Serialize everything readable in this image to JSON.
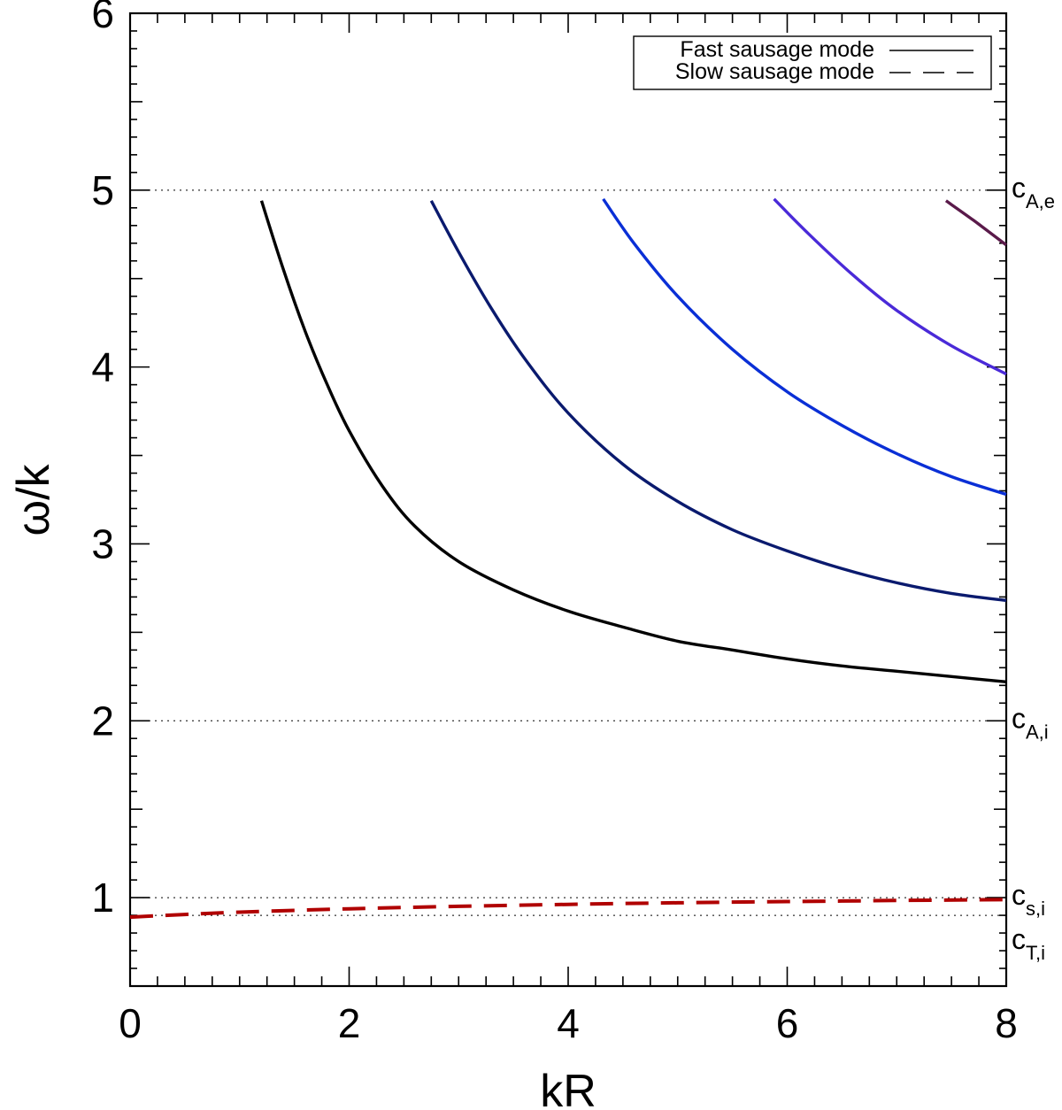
{
  "chart_data": {
    "type": "line",
    "xlabel": "kR",
    "ylabel": "ω/k",
    "xlim": [
      0,
      8
    ],
    "ylim": [
      0.5,
      6
    ],
    "xticks": [
      "0",
      "2",
      "4",
      "6",
      "8"
    ],
    "yticks": [
      "1",
      "2",
      "3",
      "4",
      "5",
      "6"
    ],
    "grid": false,
    "legend": {
      "placement": "top-right",
      "entries": [
        {
          "label": "Fast sausage mode",
          "style": "solid"
        },
        {
          "label": "Slow sausage mode",
          "style": "dashed"
        }
      ]
    },
    "reference_lines": [
      {
        "y": 5.0,
        "label_main": "c",
        "label_sub": "A,e"
      },
      {
        "y": 2.0,
        "label_main": "c",
        "label_sub": "A,i"
      },
      {
        "y": 1.0,
        "label_main": "c",
        "label_sub": "s,i"
      },
      {
        "y": 0.9,
        "label_main": "c",
        "label_sub": "T,i"
      }
    ],
    "series": [
      {
        "mode": "fast",
        "color": "#000000",
        "style": "solid",
        "points": [
          [
            1.2,
            4.94
          ],
          [
            1.4,
            4.55
          ],
          [
            1.6,
            4.2
          ],
          [
            1.8,
            3.9
          ],
          [
            2.0,
            3.64
          ],
          [
            2.3,
            3.33
          ],
          [
            2.6,
            3.1
          ],
          [
            3.0,
            2.9
          ],
          [
            3.5,
            2.74
          ],
          [
            4.0,
            2.62
          ],
          [
            4.5,
            2.53
          ],
          [
            5.0,
            2.45
          ],
          [
            5.5,
            2.4
          ],
          [
            6.0,
            2.35
          ],
          [
            6.5,
            2.31
          ],
          [
            7.0,
            2.28
          ],
          [
            7.5,
            2.25
          ],
          [
            8.0,
            2.22
          ]
        ]
      },
      {
        "mode": "fast",
        "color": "#0a1a6e",
        "style": "solid",
        "points": [
          [
            2.75,
            4.94
          ],
          [
            3.0,
            4.65
          ],
          [
            3.3,
            4.33
          ],
          [
            3.6,
            4.05
          ],
          [
            4.0,
            3.74
          ],
          [
            4.5,
            3.45
          ],
          [
            5.0,
            3.24
          ],
          [
            5.5,
            3.08
          ],
          [
            6.0,
            2.96
          ],
          [
            6.5,
            2.86
          ],
          [
            7.0,
            2.78
          ],
          [
            7.5,
            2.72
          ],
          [
            8.0,
            2.68
          ]
        ]
      },
      {
        "mode": "fast",
        "color": "#0a2fd6",
        "style": "solid",
        "points": [
          [
            4.32,
            4.95
          ],
          [
            4.6,
            4.7
          ],
          [
            5.0,
            4.4
          ],
          [
            5.5,
            4.1
          ],
          [
            6.0,
            3.86
          ],
          [
            6.5,
            3.67
          ],
          [
            7.0,
            3.51
          ],
          [
            7.5,
            3.38
          ],
          [
            8.0,
            3.28
          ]
        ]
      },
      {
        "mode": "fast",
        "color": "#4a2ad8",
        "style": "solid",
        "points": [
          [
            5.88,
            4.95
          ],
          [
            6.2,
            4.75
          ],
          [
            6.6,
            4.52
          ],
          [
            7.0,
            4.32
          ],
          [
            7.5,
            4.12
          ],
          [
            8.0,
            3.96
          ]
        ]
      },
      {
        "mode": "fast",
        "color": "#5a1a4a",
        "style": "solid",
        "points": [
          [
            7.45,
            4.94
          ],
          [
            7.7,
            4.83
          ],
          [
            8.0,
            4.69
          ]
        ]
      },
      {
        "mode": "slow",
        "color": "#b00000",
        "style": "dashed",
        "points": [
          [
            0.0,
            0.89
          ],
          [
            0.5,
            0.905
          ],
          [
            1.0,
            0.918
          ],
          [
            2.0,
            0.937
          ],
          [
            3.0,
            0.951
          ],
          [
            4.0,
            0.962
          ],
          [
            5.0,
            0.971
          ],
          [
            6.0,
            0.978
          ],
          [
            7.0,
            0.984
          ],
          [
            8.0,
            0.989
          ]
        ]
      }
    ]
  }
}
